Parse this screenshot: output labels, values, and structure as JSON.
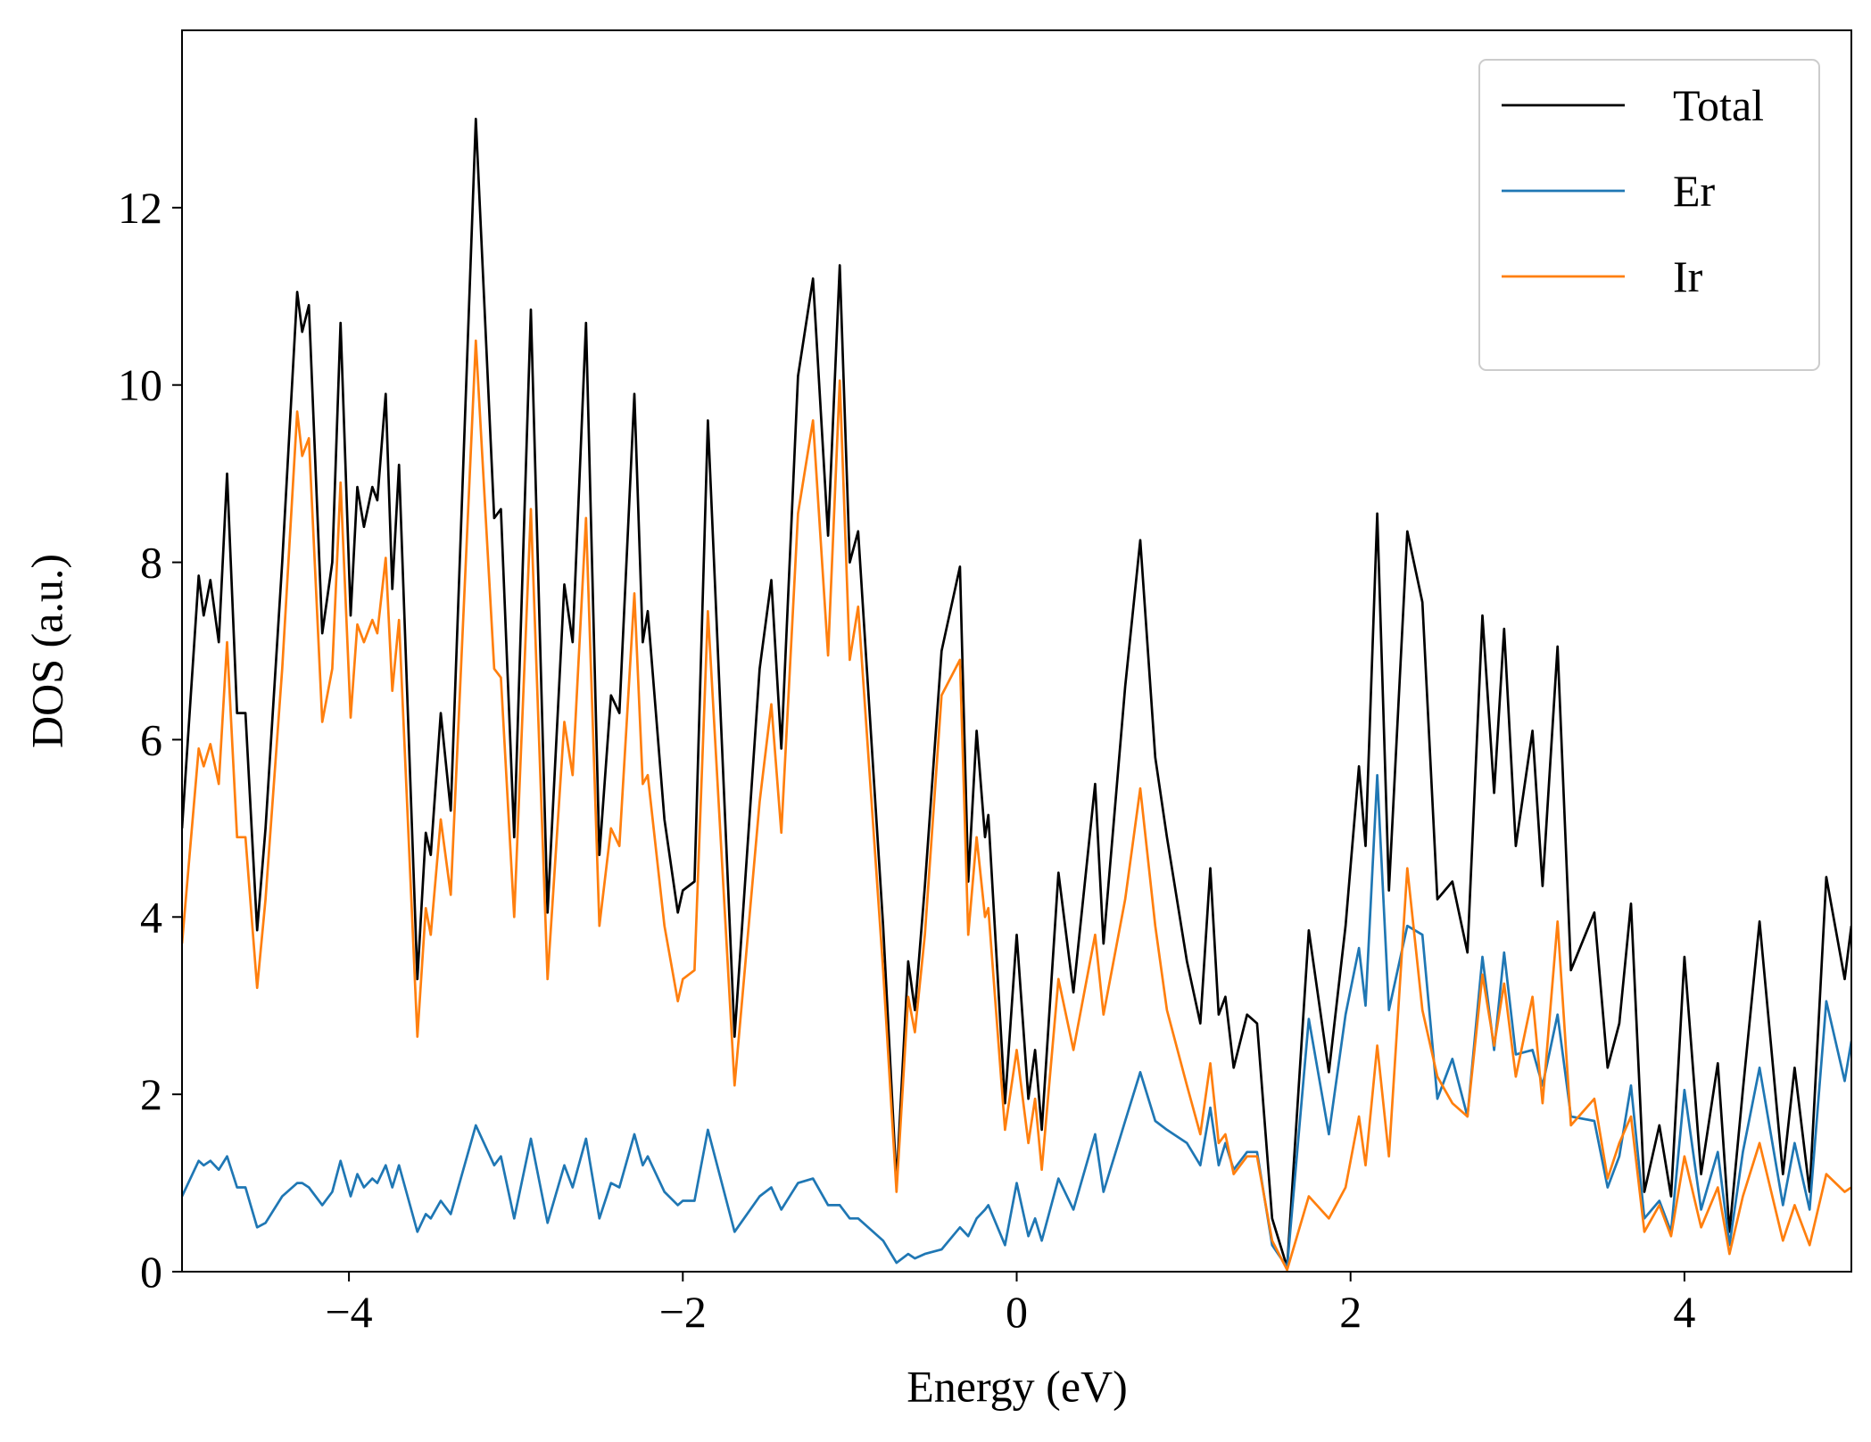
{
  "chart_data": {
    "type": "line",
    "xlabel": "Energy (eV)",
    "ylabel": "DOS (a.u.)",
    "x": [
      -5.0,
      -4.9,
      -4.87,
      -4.83,
      -4.78,
      -4.73,
      -4.67,
      -4.62,
      -4.55,
      -4.5,
      -4.4,
      -4.31,
      -4.28,
      -4.24,
      -4.16,
      -4.1,
      -4.05,
      -3.99,
      -3.95,
      -3.91,
      -3.86,
      -3.83,
      -3.78,
      -3.74,
      -3.7,
      -3.59,
      -3.54,
      -3.51,
      -3.45,
      -3.39,
      -3.24,
      -3.13,
      -3.09,
      -3.01,
      -2.91,
      -2.81,
      -2.71,
      -2.66,
      -2.58,
      -2.5,
      -2.43,
      -2.38,
      -2.29,
      -2.24,
      -2.21,
      -2.11,
      -2.03,
      -2.0,
      -1.93,
      -1.85,
      -1.69,
      -1.54,
      -1.47,
      -1.41,
      -1.31,
      -1.22,
      -1.13,
      -1.06,
      -1.0,
      -0.95,
      -0.8,
      -0.72,
      -0.65,
      -0.61,
      -0.55,
      -0.45,
      -0.34,
      -0.29,
      -0.24,
      -0.19,
      -0.17,
      -0.07,
      0.0,
      0.07,
      0.11,
      0.15,
      0.25,
      0.34,
      0.47,
      0.52,
      0.65,
      0.74,
      0.83,
      0.9,
      1.02,
      1.1,
      1.16,
      1.21,
      1.25,
      1.3,
      1.38,
      1.44,
      1.53,
      1.62,
      1.75,
      1.87,
      1.97,
      2.05,
      2.09,
      2.16,
      2.23,
      2.34,
      2.43,
      2.52,
      2.61,
      2.7,
      2.79,
      2.86,
      2.92,
      2.99,
      3.09,
      3.15,
      3.24,
      3.32,
      3.46,
      3.54,
      3.61,
      3.68,
      3.76,
      3.85,
      3.92,
      4.0,
      4.1,
      4.2,
      4.27,
      4.35,
      4.45,
      4.59,
      4.66,
      4.75,
      4.85,
      4.96,
      5.0
    ],
    "series": [
      {
        "name": "Total",
        "color": "#000000",
        "values": [
          5.0,
          7.85,
          7.4,
          7.8,
          7.1,
          9.0,
          6.3,
          6.3,
          3.85,
          5.0,
          8.0,
          11.05,
          10.6,
          10.9,
          7.2,
          8.0,
          10.7,
          7.4,
          8.85,
          8.4,
          8.85,
          8.7,
          9.9,
          7.7,
          9.1,
          3.3,
          4.95,
          4.7,
          6.3,
          5.2,
          13.0,
          8.5,
          8.6,
          4.9,
          10.85,
          4.05,
          7.75,
          7.1,
          10.7,
          4.7,
          6.5,
          6.3,
          9.9,
          7.1,
          7.45,
          5.1,
          4.05,
          4.3,
          4.4,
          9.6,
          2.65,
          6.8,
          7.8,
          5.9,
          10.1,
          11.2,
          8.3,
          11.35,
          8.0,
          8.35,
          3.9,
          1.0,
          3.5,
          2.95,
          4.35,
          7.0,
          7.95,
          4.4,
          6.1,
          4.9,
          5.15,
          1.9,
          3.8,
          1.95,
          2.5,
          1.6,
          4.5,
          3.15,
          5.5,
          3.7,
          6.6,
          8.25,
          5.8,
          4.9,
          3.5,
          2.8,
          4.55,
          2.9,
          3.1,
          2.3,
          2.9,
          2.8,
          0.6,
          0.05,
          3.85,
          2.25,
          3.9,
          5.7,
          4.8,
          8.55,
          4.3,
          8.35,
          7.55,
          4.2,
          4.4,
          3.6,
          7.4,
          5.4,
          7.25,
          4.8,
          6.1,
          4.35,
          7.05,
          3.4,
          4.05,
          2.3,
          2.8,
          4.15,
          0.9,
          1.65,
          0.85,
          3.55,
          1.1,
          2.35,
          0.45,
          2.05,
          3.95,
          1.1,
          2.3,
          0.9,
          4.45,
          3.3,
          3.9
        ]
      },
      {
        "name": "Er",
        "color": "#1f77b4",
        "values": [
          0.85,
          1.25,
          1.2,
          1.25,
          1.15,
          1.3,
          0.95,
          0.95,
          0.5,
          0.55,
          0.85,
          1.0,
          1.0,
          0.95,
          0.75,
          0.9,
          1.25,
          0.85,
          1.1,
          0.95,
          1.05,
          1.0,
          1.2,
          0.95,
          1.2,
          0.45,
          0.65,
          0.6,
          0.8,
          0.65,
          1.65,
          1.2,
          1.3,
          0.6,
          1.5,
          0.55,
          1.2,
          0.95,
          1.5,
          0.6,
          1.0,
          0.95,
          1.55,
          1.2,
          1.3,
          0.9,
          0.75,
          0.8,
          0.8,
          1.6,
          0.45,
          0.85,
          0.95,
          0.7,
          1.0,
          1.05,
          0.75,
          0.75,
          0.6,
          0.6,
          0.35,
          0.1,
          0.2,
          0.15,
          0.2,
          0.25,
          0.5,
          0.4,
          0.6,
          0.7,
          0.75,
          0.3,
          1.0,
          0.4,
          0.6,
          0.35,
          1.05,
          0.7,
          1.55,
          0.9,
          1.7,
          2.25,
          1.7,
          1.6,
          1.45,
          1.2,
          1.85,
          1.2,
          1.45,
          1.15,
          1.35,
          1.35,
          0.3,
          0.05,
          2.85,
          1.55,
          2.9,
          3.65,
          3.0,
          5.6,
          2.95,
          3.9,
          3.8,
          1.95,
          2.4,
          1.75,
          3.55,
          2.5,
          3.6,
          2.45,
          2.5,
          2.1,
          2.9,
          1.75,
          1.7,
          0.95,
          1.3,
          2.1,
          0.6,
          0.8,
          0.45,
          2.05,
          0.7,
          1.35,
          0.3,
          1.35,
          2.3,
          0.75,
          1.45,
          0.7,
          3.05,
          2.15,
          2.6
        ]
      },
      {
        "name": "Ir",
        "color": "#ff7f0e",
        "values": [
          3.7,
          5.9,
          5.7,
          5.95,
          5.5,
          7.1,
          4.9,
          4.9,
          3.2,
          4.2,
          6.8,
          9.7,
          9.2,
          9.4,
          6.2,
          6.8,
          8.9,
          6.25,
          7.3,
          7.1,
          7.35,
          7.2,
          8.05,
          6.55,
          7.35,
          2.65,
          4.1,
          3.8,
          5.1,
          4.25,
          10.5,
          6.8,
          6.7,
          4.0,
          8.6,
          3.3,
          6.2,
          5.6,
          8.5,
          3.9,
          5.0,
          4.8,
          7.65,
          5.5,
          5.6,
          3.9,
          3.05,
          3.3,
          3.4,
          7.45,
          2.1,
          5.3,
          6.4,
          4.95,
          8.55,
          9.6,
          6.95,
          10.05,
          6.9,
          7.5,
          3.4,
          0.9,
          3.1,
          2.7,
          3.8,
          6.5,
          6.9,
          3.8,
          4.9,
          4.0,
          4.1,
          1.6,
          2.5,
          1.45,
          1.95,
          1.15,
          3.3,
          2.5,
          3.8,
          2.9,
          4.2,
          5.45,
          3.9,
          2.95,
          2.1,
          1.55,
          2.35,
          1.45,
          1.55,
          1.1,
          1.3,
          1.3,
          0.35,
          0.02,
          0.85,
          0.6,
          0.95,
          1.75,
          1.2,
          2.55,
          1.3,
          4.55,
          2.95,
          2.2,
          1.9,
          1.75,
          3.35,
          2.55,
          3.25,
          2.2,
          3.1,
          1.9,
          3.95,
          1.65,
          1.95,
          1.05,
          1.45,
          1.75,
          0.45,
          0.75,
          0.4,
          1.3,
          0.5,
          0.95,
          0.2,
          0.85,
          1.45,
          0.35,
          0.75,
          0.3,
          1.1,
          0.9,
          0.95
        ]
      }
    ],
    "xlim": [
      -5,
      5
    ],
    "xticks": [
      {
        "value": -4,
        "label": "−4"
      },
      {
        "value": -2,
        "label": "−2"
      },
      0,
      2,
      4
    ],
    "ylim": [
      0,
      14
    ],
    "yticks": [
      0,
      2,
      4,
      6,
      8,
      10,
      12
    ],
    "legend": "upper right"
  }
}
